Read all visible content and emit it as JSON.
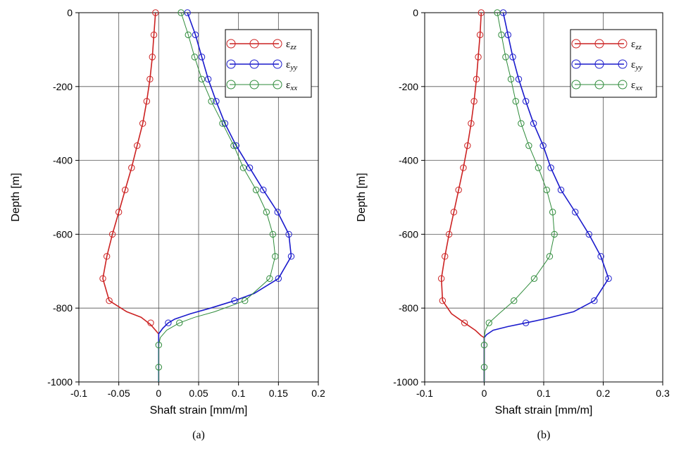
{
  "chart_data": [
    {
      "type": "line",
      "caption": "(a)",
      "xlabel": "Shaft strain [mm/m]",
      "ylabel": "Depth [m]",
      "xlim": [
        -0.1,
        0.2
      ],
      "ylim": [
        -1000,
        0
      ],
      "xticks": [
        "-0.1",
        "-0.05",
        "0",
        "0.05",
        "0.1",
        "0.15",
        "0.2"
      ],
      "xtick_values": [
        -0.1,
        -0.05,
        0,
        0.05,
        0.1,
        0.15,
        0.2
      ],
      "yticks": [
        "0",
        "-200",
        "-400",
        "-600",
        "-800",
        "-1000"
      ],
      "ytick_values": [
        0,
        -200,
        -400,
        -600,
        -800,
        -1000
      ],
      "grid": true,
      "legend_position": "top-right",
      "series": [
        {
          "name": "ε",
          "subscript": "zz",
          "color": "#cc2222",
          "curve": [
            [
              -0.004,
              0
            ],
            [
              -0.006,
              -60
            ],
            [
              -0.008,
              -120
            ],
            [
              -0.011,
              -180
            ],
            [
              -0.015,
              -240
            ],
            [
              -0.02,
              -300
            ],
            [
              -0.027,
              -360
            ],
            [
              -0.034,
              -420
            ],
            [
              -0.042,
              -480
            ],
            [
              -0.05,
              -540
            ],
            [
              -0.058,
              -600
            ],
            [
              -0.065,
              -660
            ],
            [
              -0.07,
              -720
            ],
            [
              -0.062,
              -780
            ],
            [
              -0.04,
              -810
            ],
            [
              -0.022,
              -825
            ],
            [
              -0.01,
              -845
            ],
            [
              -0.004,
              -860
            ],
            [
              0,
              -870
            ],
            [
              0,
              -1000
            ]
          ],
          "markers": [
            [
              -0.004,
              0
            ],
            [
              -0.006,
              -60
            ],
            [
              -0.008,
              -120
            ],
            [
              -0.011,
              -180
            ],
            [
              -0.015,
              -240
            ],
            [
              -0.02,
              -300
            ],
            [
              -0.027,
              -360
            ],
            [
              -0.034,
              -420
            ],
            [
              -0.042,
              -480
            ],
            [
              -0.05,
              -540
            ],
            [
              -0.058,
              -600
            ],
            [
              -0.065,
              -660
            ],
            [
              -0.07,
              -720
            ],
            [
              -0.062,
              -780
            ],
            [
              -0.01,
              -840
            ]
          ]
        },
        {
          "name": "ε",
          "subscript": "yy",
          "color": "#1a1acc",
          "curve": [
            [
              0.036,
              0
            ],
            [
              0.046,
              -60
            ],
            [
              0.054,
              -120
            ],
            [
              0.062,
              -180
            ],
            [
              0.072,
              -240
            ],
            [
              0.083,
              -300
            ],
            [
              0.097,
              -360
            ],
            [
              0.114,
              -420
            ],
            [
              0.131,
              -480
            ],
            [
              0.149,
              -540
            ],
            [
              0.163,
              -600
            ],
            [
              0.166,
              -660
            ],
            [
              0.15,
              -720
            ],
            [
              0.12,
              -760
            ],
            [
              0.095,
              -780
            ],
            [
              0.065,
              -800
            ],
            [
              0.04,
              -815
            ],
            [
              0.02,
              -830
            ],
            [
              0.012,
              -840
            ],
            [
              0.005,
              -855
            ],
            [
              0,
              -870
            ],
            [
              0,
              -1000
            ]
          ],
          "markers": [
            [
              0.036,
              0
            ],
            [
              0.046,
              -60
            ],
            [
              0.054,
              -120
            ],
            [
              0.062,
              -180
            ],
            [
              0.072,
              -240
            ],
            [
              0.083,
              -300
            ],
            [
              0.097,
              -360
            ],
            [
              0.114,
              -420
            ],
            [
              0.131,
              -480
            ],
            [
              0.149,
              -540
            ],
            [
              0.163,
              -600
            ],
            [
              0.166,
              -660
            ],
            [
              0.15,
              -720
            ],
            [
              0.095,
              -780
            ],
            [
              0.012,
              -840
            ]
          ]
        },
        {
          "name": "ε",
          "subscript": "xx",
          "color": "#2e8b3a",
          "curve": [
            [
              0.028,
              0
            ],
            [
              0.037,
              -60
            ],
            [
              0.045,
              -120
            ],
            [
              0.054,
              -180
            ],
            [
              0.066,
              -240
            ],
            [
              0.08,
              -300
            ],
            [
              0.094,
              -360
            ],
            [
              0.106,
              -420
            ],
            [
              0.122,
              -480
            ],
            [
              0.135,
              -540
            ],
            [
              0.143,
              -600
            ],
            [
              0.146,
              -660
            ],
            [
              0.139,
              -720
            ],
            [
              0.108,
              -780
            ],
            [
              0.07,
              -810
            ],
            [
              0.045,
              -825
            ],
            [
              0.026,
              -840
            ],
            [
              0.01,
              -860
            ],
            [
              0.002,
              -880
            ],
            [
              0,
              -900
            ],
            [
              0,
              -1000
            ]
          ],
          "markers": [
            [
              0.028,
              0
            ],
            [
              0.037,
              -60
            ],
            [
              0.045,
              -120
            ],
            [
              0.054,
              -180
            ],
            [
              0.066,
              -240
            ],
            [
              0.08,
              -300
            ],
            [
              0.094,
              -360
            ],
            [
              0.106,
              -420
            ],
            [
              0.122,
              -480
            ],
            [
              0.135,
              -540
            ],
            [
              0.143,
              -600
            ],
            [
              0.146,
              -660
            ],
            [
              0.139,
              -720
            ],
            [
              0.108,
              -780
            ],
            [
              0.026,
              -840
            ],
            [
              0,
              -900
            ],
            [
              0,
              -960
            ]
          ]
        }
      ]
    },
    {
      "type": "line",
      "caption": "(b)",
      "xlabel": "Shaft strain [mm/m]",
      "ylabel": "Depth [m]",
      "xlim": [
        -0.1,
        0.3
      ],
      "ylim": [
        -1000,
        0
      ],
      "xticks": [
        "-0.1",
        "0",
        "0.1",
        "0.2",
        "0.3"
      ],
      "xtick_values": [
        -0.1,
        0,
        0.1,
        0.2,
        0.3
      ],
      "yticks": [
        "0",
        "-200",
        "-400",
        "-600",
        "-800",
        "-1000"
      ],
      "ytick_values": [
        0,
        -200,
        -400,
        -600,
        -800,
        -1000
      ],
      "grid": true,
      "legend_position": "top-right",
      "series": [
        {
          "name": "ε",
          "subscript": "zz",
          "color": "#cc2222",
          "curve": [
            [
              -0.005,
              0
            ],
            [
              -0.007,
              -60
            ],
            [
              -0.01,
              -120
            ],
            [
              -0.013,
              -180
            ],
            [
              -0.017,
              -240
            ],
            [
              -0.022,
              -300
            ],
            [
              -0.028,
              -360
            ],
            [
              -0.035,
              -420
            ],
            [
              -0.043,
              -480
            ],
            [
              -0.051,
              -540
            ],
            [
              -0.059,
              -600
            ],
            [
              -0.066,
              -660
            ],
            [
              -0.072,
              -720
            ],
            [
              -0.07,
              -780
            ],
            [
              -0.055,
              -815
            ],
            [
              -0.033,
              -840
            ],
            [
              -0.015,
              -860
            ],
            [
              -0.005,
              -875
            ],
            [
              0,
              -880
            ],
            [
              0,
              -1000
            ]
          ],
          "markers": [
            [
              -0.005,
              0
            ],
            [
              -0.007,
              -60
            ],
            [
              -0.01,
              -120
            ],
            [
              -0.013,
              -180
            ],
            [
              -0.017,
              -240
            ],
            [
              -0.022,
              -300
            ],
            [
              -0.028,
              -360
            ],
            [
              -0.035,
              -420
            ],
            [
              -0.043,
              -480
            ],
            [
              -0.051,
              -540
            ],
            [
              -0.059,
              -600
            ],
            [
              -0.066,
              -660
            ],
            [
              -0.072,
              -720
            ],
            [
              -0.07,
              -780
            ],
            [
              -0.033,
              -840
            ]
          ]
        },
        {
          "name": "ε",
          "subscript": "yy",
          "color": "#1a1acc",
          "curve": [
            [
              0.032,
              0
            ],
            [
              0.04,
              -60
            ],
            [
              0.048,
              -120
            ],
            [
              0.058,
              -180
            ],
            [
              0.07,
              -240
            ],
            [
              0.083,
              -300
            ],
            [
              0.099,
              -360
            ],
            [
              0.112,
              -420
            ],
            [
              0.129,
              -480
            ],
            [
              0.153,
              -540
            ],
            [
              0.176,
              -600
            ],
            [
              0.196,
              -660
            ],
            [
              0.209,
              -720
            ],
            [
              0.185,
              -780
            ],
            [
              0.15,
              -810
            ],
            [
              0.1,
              -830
            ],
            [
              0.07,
              -840
            ],
            [
              0.04,
              -850
            ],
            [
              0.015,
              -860
            ],
            [
              0.004,
              -872
            ],
            [
              0,
              -880
            ],
            [
              0,
              -1000
            ]
          ],
          "markers": [
            [
              0.032,
              0
            ],
            [
              0.04,
              -60
            ],
            [
              0.048,
              -120
            ],
            [
              0.058,
              -180
            ],
            [
              0.07,
              -240
            ],
            [
              0.083,
              -300
            ],
            [
              0.099,
              -360
            ],
            [
              0.112,
              -420
            ],
            [
              0.129,
              -480
            ],
            [
              0.153,
              -540
            ],
            [
              0.176,
              -600
            ],
            [
              0.196,
              -660
            ],
            [
              0.209,
              -720
            ],
            [
              0.185,
              -780
            ],
            [
              0.07,
              -840
            ]
          ]
        },
        {
          "name": "ε",
          "subscript": "xx",
          "color": "#2e8b3a",
          "curve": [
            [
              0.022,
              0
            ],
            [
              0.029,
              -60
            ],
            [
              0.036,
              -120
            ],
            [
              0.045,
              -180
            ],
            [
              0.053,
              -240
            ],
            [
              0.062,
              -300
            ],
            [
              0.075,
              -360
            ],
            [
              0.091,
              -420
            ],
            [
              0.105,
              -480
            ],
            [
              0.115,
              -540
            ],
            [
              0.118,
              -600
            ],
            [
              0.11,
              -660
            ],
            [
              0.084,
              -720
            ],
            [
              0.05,
              -780
            ],
            [
              0.025,
              -815
            ],
            [
              0.008,
              -840
            ],
            [
              0.002,
              -860
            ],
            [
              0,
              -880
            ],
            [
              0,
              -1000
            ]
          ],
          "markers": [
            [
              0.022,
              0
            ],
            [
              0.029,
              -60
            ],
            [
              0.036,
              -120
            ],
            [
              0.045,
              -180
            ],
            [
              0.053,
              -240
            ],
            [
              0.062,
              -300
            ],
            [
              0.075,
              -360
            ],
            [
              0.091,
              -420
            ],
            [
              0.105,
              -480
            ],
            [
              0.115,
              -540
            ],
            [
              0.118,
              -600
            ],
            [
              0.11,
              -660
            ],
            [
              0.084,
              -720
            ],
            [
              0.05,
              -780
            ],
            [
              0.008,
              -840
            ],
            [
              0,
              -900
            ],
            [
              0,
              -960
            ]
          ]
        }
      ]
    }
  ]
}
